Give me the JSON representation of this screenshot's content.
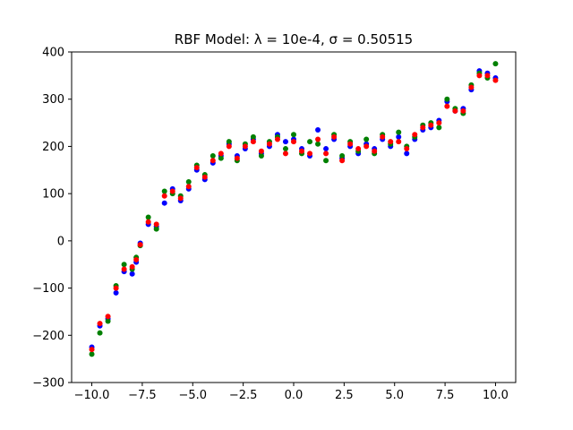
{
  "chart_data": {
    "type": "scatter",
    "title": "RBF Model: λ = 10e-4, σ = 0.50515",
    "xlabel": "",
    "ylabel": "",
    "xlim": [
      -11.0,
      11.0
    ],
    "ylim": [
      -300,
      400
    ],
    "x_ticks": [
      -10.0,
      -7.5,
      -5.0,
      -2.5,
      0.0,
      2.5,
      5.0,
      7.5,
      10.0
    ],
    "x_tick_labels": [
      "−10.0",
      "−7.5",
      "−5.0",
      "−2.5",
      "0.0",
      "2.5",
      "5.0",
      "7.5",
      "10.0"
    ],
    "y_ticks": [
      -300,
      -200,
      -100,
      0,
      100,
      200,
      300,
      400
    ],
    "y_tick_labels": [
      "−300",
      "−200",
      "−100",
      "0",
      "100",
      "200",
      "300",
      "400"
    ],
    "grid": false,
    "series": [
      {
        "color": "#0000ff",
        "x": [
          -10.0,
          -9.6,
          -9.2,
          -8.8,
          -8.4,
          -8.0,
          -7.8,
          -7.6,
          -7.2,
          -6.8,
          -6.4,
          -6.0,
          -5.6,
          -5.2,
          -4.8,
          -4.4,
          -4.0,
          -3.6,
          -3.2,
          -2.8,
          -2.4,
          -2.0,
          -1.6,
          -1.2,
          -0.8,
          -0.4,
          0.0,
          0.4,
          0.8,
          1.2,
          1.6,
          2.0,
          2.4,
          2.8,
          3.2,
          3.6,
          4.0,
          4.4,
          4.8,
          5.2,
          5.6,
          6.0,
          6.4,
          6.8,
          7.2,
          7.6,
          8.0,
          8.4,
          8.8,
          9.2,
          9.6,
          10.0
        ],
        "y": [
          -225,
          -180,
          -165,
          -110,
          -65,
          -70,
          -45,
          -5,
          35,
          30,
          80,
          110,
          85,
          110,
          150,
          130,
          165,
          180,
          205,
          180,
          195,
          215,
          185,
          200,
          225,
          210,
          215,
          195,
          180,
          235,
          195,
          215,
          175,
          200,
          185,
          205,
          195,
          215,
          200,
          220,
          185,
          215,
          235,
          240,
          255,
          295,
          275,
          280,
          320,
          360,
          355,
          345
        ]
      },
      {
        "color": "#008000",
        "x": [
          -10.0,
          -9.6,
          -9.2,
          -8.8,
          -8.4,
          -8.0,
          -7.8,
          -7.6,
          -7.2,
          -6.8,
          -6.4,
          -6.0,
          -5.6,
          -5.2,
          -4.8,
          -4.4,
          -4.0,
          -3.6,
          -3.2,
          -2.8,
          -2.4,
          -2.0,
          -1.6,
          -1.2,
          -0.8,
          -0.4,
          0.0,
          0.4,
          0.8,
          1.2,
          1.6,
          2.0,
          2.4,
          2.8,
          3.2,
          3.6,
          4.0,
          4.4,
          4.8,
          5.2,
          5.6,
          6.0,
          6.4,
          6.8,
          7.2,
          7.6,
          8.0,
          8.4,
          8.8,
          9.2,
          9.6,
          10.0
        ],
        "y": [
          -240,
          -195,
          -170,
          -95,
          -50,
          -60,
          -35,
          -10,
          50,
          25,
          105,
          100,
          95,
          125,
          160,
          140,
          180,
          175,
          210,
          170,
          205,
          220,
          180,
          210,
          220,
          195,
          225,
          185,
          210,
          205,
          170,
          225,
          180,
          210,
          190,
          215,
          185,
          225,
          205,
          230,
          200,
          220,
          245,
          250,
          240,
          300,
          280,
          270,
          330,
          355,
          345,
          375
        ]
      },
      {
        "color": "#ff0000",
        "x": [
          -10.0,
          -9.6,
          -9.2,
          -8.8,
          -8.4,
          -8.0,
          -7.8,
          -7.6,
          -7.2,
          -6.8,
          -6.4,
          -6.0,
          -5.6,
          -5.2,
          -4.8,
          -4.4,
          -4.0,
          -3.6,
          -3.2,
          -2.8,
          -2.4,
          -2.0,
          -1.6,
          -1.2,
          -0.8,
          -0.4,
          0.0,
          0.4,
          0.8,
          1.2,
          1.6,
          2.0,
          2.4,
          2.8,
          3.2,
          3.6,
          4.0,
          4.4,
          4.8,
          5.2,
          5.6,
          6.0,
          6.4,
          6.8,
          7.2,
          7.6,
          8.0,
          8.4,
          8.8,
          9.2,
          9.6,
          10.0
        ],
        "y": [
          -230,
          -175,
          -160,
          -100,
          -60,
          -55,
          -40,
          -8,
          40,
          35,
          95,
          105,
          90,
          115,
          155,
          135,
          170,
          185,
          200,
          175,
          200,
          210,
          190,
          205,
          215,
          185,
          210,
          190,
          185,
          215,
          185,
          220,
          170,
          205,
          195,
          200,
          190,
          220,
          210,
          210,
          195,
          225,
          240,
          245,
          250,
          285,
          275,
          275,
          325,
          350,
          350,
          340
        ]
      }
    ]
  }
}
